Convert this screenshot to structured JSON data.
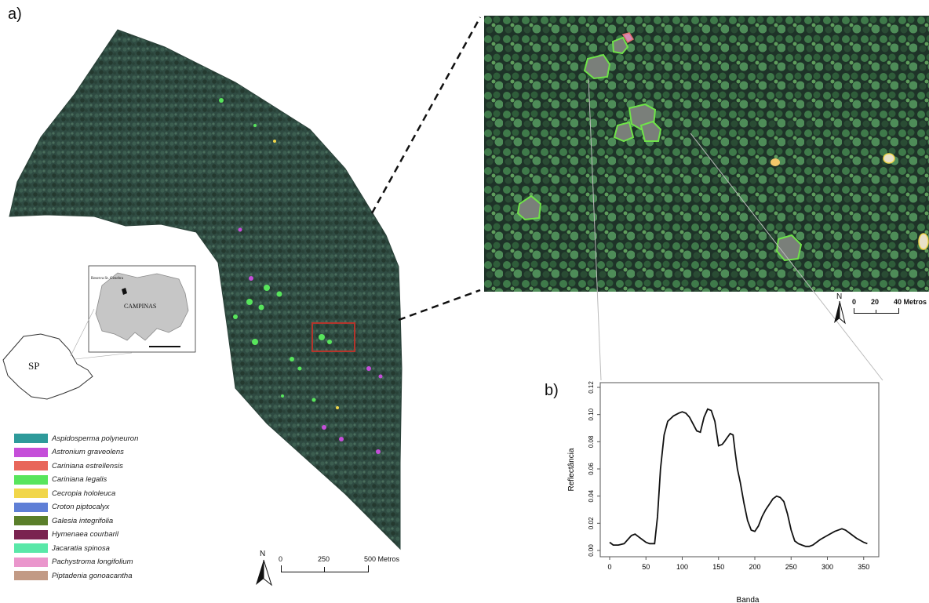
{
  "panel_a_label": "a)",
  "panel_b_label": "b)",
  "inset": {
    "state_label": "SP",
    "city_label": "CAMPINAS",
    "reserve_label": "Reserva St. Genebra"
  },
  "legend": {
    "items": [
      {
        "label": "Aspidosperma polyneuron",
        "color": "#2e9a9a"
      },
      {
        "label": "Astronium graveolens",
        "color": "#c54ed9"
      },
      {
        "label": "Cariniana estrellensis",
        "color": "#e8665a"
      },
      {
        "label": "Cariniana legalis",
        "color": "#58e55c"
      },
      {
        "label": "Cecropia hololeuca",
        "color": "#f1d64a"
      },
      {
        "label": "Croton piptocalyx",
        "color": "#5f7fd6"
      },
      {
        "label": "Galesia integrifolia",
        "color": "#5a7f2a"
      },
      {
        "label": "Hymenaea courbaril",
        "color": "#7a2350"
      },
      {
        "label": "Jacaratia spinosa",
        "color": "#59e8a8"
      },
      {
        "label": "Pachystroma longifolium",
        "color": "#ea96cc"
      },
      {
        "label": "Piptadenia gonoacantha",
        "color": "#c29a85"
      }
    ]
  },
  "main_scale": {
    "north": "N",
    "tick0": "0",
    "tick1": "250",
    "tick2": "500 Metros"
  },
  "zoom_scale": {
    "north": "N",
    "tick0": "0",
    "tick1": "20",
    "tick2": "40 Metros"
  },
  "chart_data": {
    "type": "line",
    "xlabel": "Banda",
    "ylabel": "Reflectância",
    "xlim": [
      0,
      360
    ],
    "ylim": [
      0,
      0.12
    ],
    "x_ticks": [
      "0",
      "50",
      "100",
      "150",
      "200",
      "250",
      "300",
      "350"
    ],
    "y_ticks": [
      "0.00",
      "0.02",
      "0.04",
      "0.06",
      "0.08",
      "0.10",
      "0.12"
    ],
    "series": [
      {
        "x": [
          0,
          5,
          12,
          20,
          25,
          30,
          35,
          40,
          45,
          50,
          55,
          62,
          66,
          70,
          75,
          80,
          88,
          95,
          100,
          105,
          110,
          115,
          120,
          125,
          130,
          135,
          140,
          145,
          150,
          155,
          158,
          162,
          166,
          170,
          173,
          176,
          180,
          185,
          190,
          195,
          200,
          205,
          210,
          215,
          220,
          225,
          230,
          235,
          240,
          245,
          250,
          255,
          260,
          265,
          270,
          275,
          280,
          290,
          300,
          310,
          320,
          325,
          330,
          340,
          350,
          355
        ],
        "y": [
          0.006,
          0.004,
          0.004,
          0.005,
          0.008,
          0.011,
          0.012,
          0.01,
          0.008,
          0.006,
          0.005,
          0.005,
          0.025,
          0.06,
          0.085,
          0.095,
          0.099,
          0.101,
          0.102,
          0.101,
          0.098,
          0.093,
          0.088,
          0.087,
          0.098,
          0.104,
          0.103,
          0.095,
          0.077,
          0.078,
          0.08,
          0.083,
          0.086,
          0.085,
          0.072,
          0.06,
          0.05,
          0.035,
          0.022,
          0.015,
          0.014,
          0.018,
          0.025,
          0.03,
          0.034,
          0.038,
          0.04,
          0.039,
          0.036,
          0.027,
          0.015,
          0.007,
          0.005,
          0.004,
          0.003,
          0.003,
          0.004,
          0.008,
          0.011,
          0.014,
          0.016,
          0.015,
          0.013,
          0.009,
          0.006,
          0.005
        ]
      }
    ]
  }
}
